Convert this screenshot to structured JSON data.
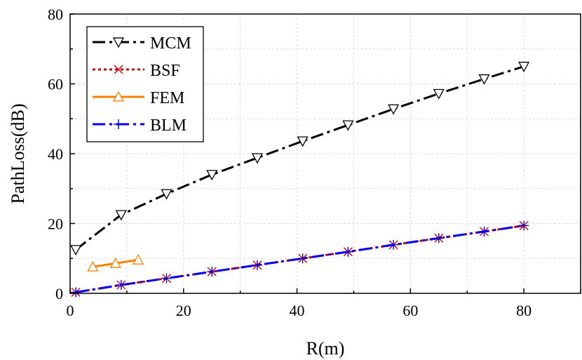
{
  "chart_data": {
    "type": "line",
    "xlabel": "R(m)",
    "ylabel": "PathLoss(dB)",
    "xlim": [
      0,
      90
    ],
    "ylim": [
      0,
      80
    ],
    "xticks": [
      0,
      20,
      40,
      60,
      80
    ],
    "yticks": [
      0,
      20,
      40,
      60,
      80
    ],
    "grid": true,
    "legend_position": "top-left",
    "series": [
      {
        "name": "MCM",
        "color": "#000000",
        "line_style": "dash-dot",
        "marker": "triangle-down-open",
        "x": [
          1,
          9,
          17,
          25,
          33,
          41,
          49,
          57,
          65,
          73,
          80
        ],
        "y": [
          12.5,
          22.5,
          28.5,
          34,
          38.8,
          43.6,
          48.2,
          52.8,
          57.2,
          61.4,
          65
        ]
      },
      {
        "name": "BSF",
        "color": "#cc0000",
        "line_style": "dotted",
        "marker": "x",
        "x": [
          1,
          9,
          17,
          25,
          33,
          41,
          49,
          57,
          65,
          73,
          80
        ],
        "y": [
          0.3,
          2.4,
          4.3,
          6.2,
          8.1,
          10,
          11.9,
          13.9,
          15.8,
          17.7,
          19.4
        ]
      },
      {
        "name": "FEM",
        "color": "#ff8000",
        "line_style": "solid",
        "marker": "triangle-up-open",
        "x": [
          4,
          8,
          12
        ],
        "y": [
          7.6,
          8.6,
          9.6
        ]
      },
      {
        "name": "BLM",
        "color": "#0000ee",
        "line_style": "dash-dot",
        "marker": "plus",
        "x": [
          1,
          9,
          17,
          25,
          33,
          41,
          49,
          57,
          65,
          73,
          80
        ],
        "y": [
          0.3,
          2.4,
          4.3,
          6.2,
          8.1,
          10,
          11.9,
          13.9,
          15.8,
          17.7,
          19.4
        ]
      }
    ]
  }
}
